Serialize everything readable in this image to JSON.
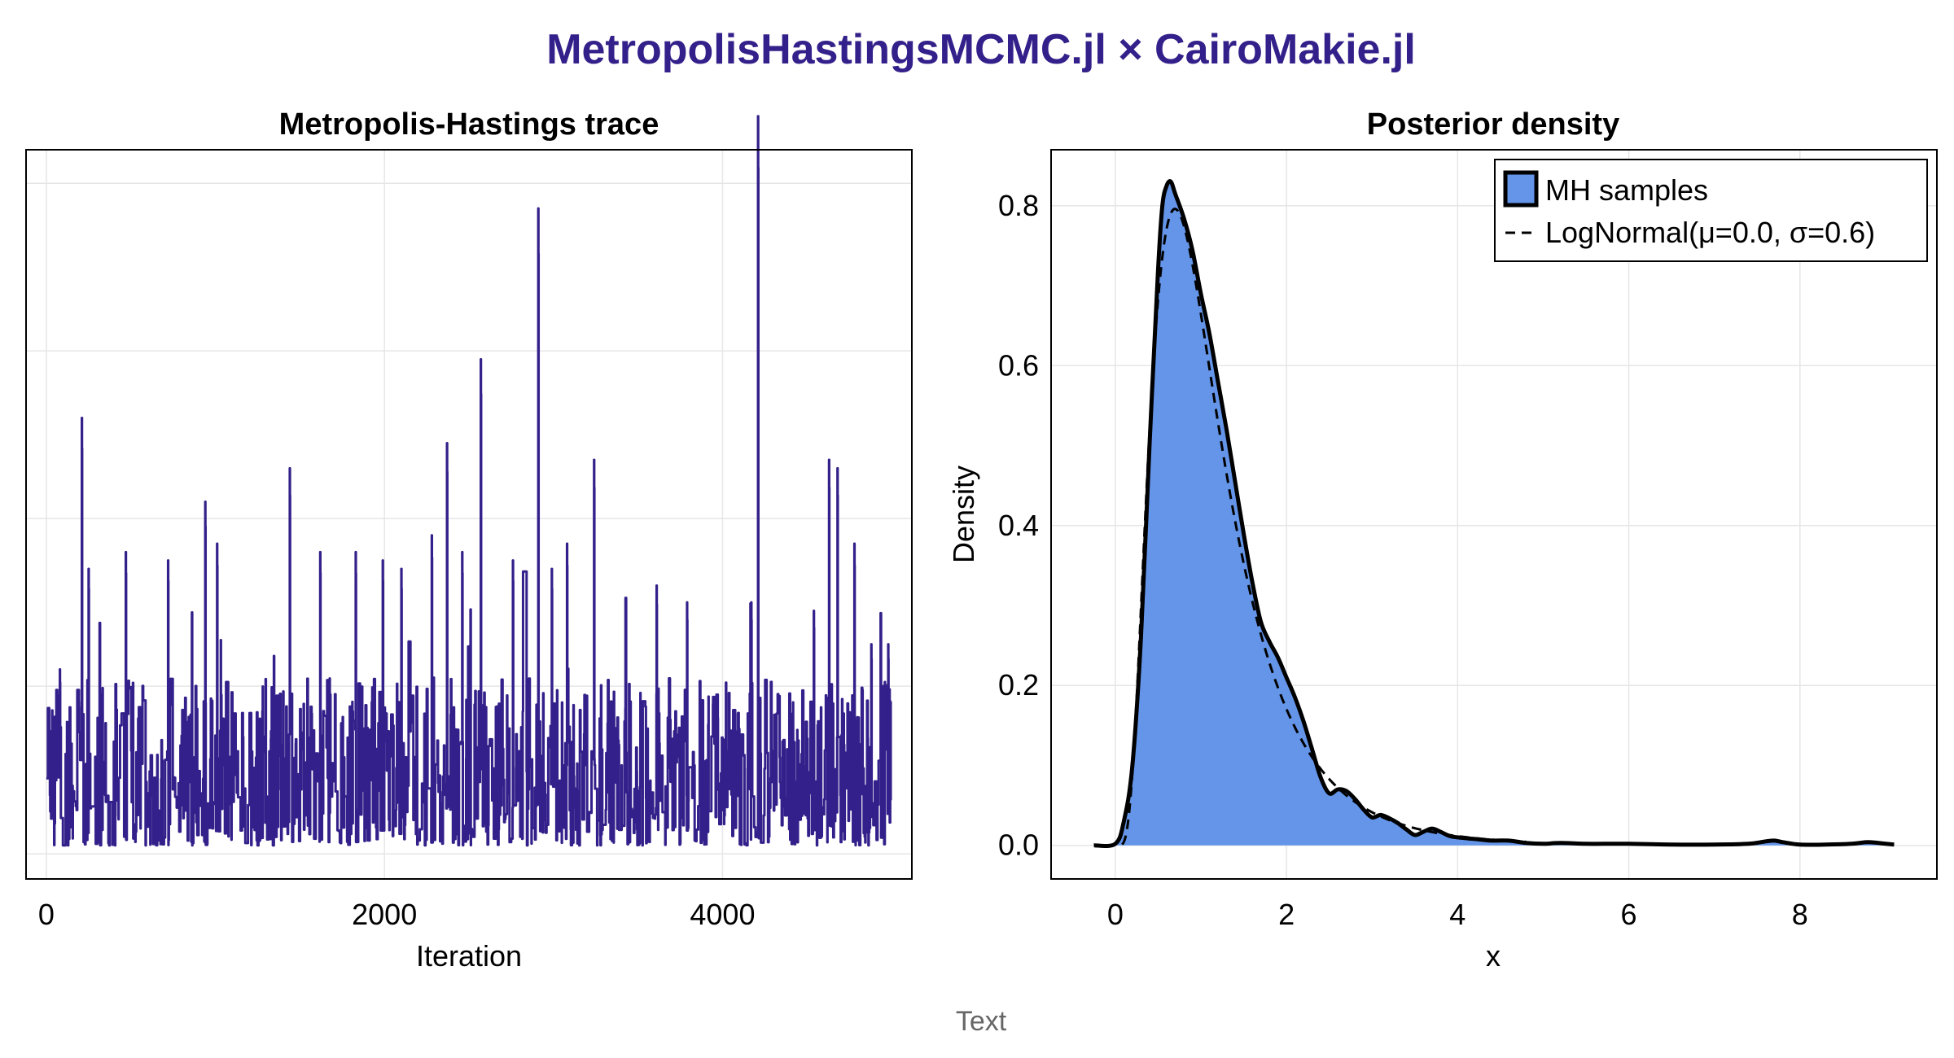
{
  "figure": {
    "title": "MetropolisHastingsMCMC.jl × CairoMakie.jl",
    "caption": "Text",
    "colors": {
      "title": "#34208a",
      "trace": "#34208a",
      "fill": "#6495e8",
      "line": "#000000",
      "grid": "#e6e6e6"
    }
  },
  "chart_data": [
    {
      "type": "line",
      "title": "Metropolis-Hastings trace",
      "xlabel": "Iteration",
      "ylabel": "",
      "xlim": [
        -120,
        5120
      ],
      "ylim": [
        -0.3,
        8.4
      ],
      "xticks": [
        0,
        2000,
        4000
      ],
      "xtick_labels": [
        "0",
        "2000",
        "4000"
      ],
      "yticks": [
        0,
        2,
        4,
        6,
        8
      ],
      "yticks_labeled": false,
      "grid": true,
      "n_iterations": 5000,
      "series": [
        {
          "color": "#34208a",
          "baseline_range": [
            0.1,
            2.1
          ],
          "spikes": [
            [
              80,
              2.2
            ],
            [
              210,
              5.2
            ],
            [
              250,
              3.4
            ],
            [
              470,
              3.6
            ],
            [
              720,
              3.5
            ],
            [
              940,
              4.2
            ],
            [
              1010,
              3.7
            ],
            [
              1440,
              4.6
            ],
            [
              1620,
              3.6
            ],
            [
              1830,
              3.6
            ],
            [
              1990,
              3.5
            ],
            [
              2100,
              3.4
            ],
            [
              2280,
              3.8
            ],
            [
              2370,
              4.9
            ],
            [
              2460,
              3.6
            ],
            [
              2570,
              5.9
            ],
            [
              2760,
              3.5
            ],
            [
              2910,
              7.7
            ],
            [
              2990,
              3.4
            ],
            [
              3080,
              3.7
            ],
            [
              3240,
              4.7
            ],
            [
              3610,
              3.2
            ],
            [
              3790,
              3.0
            ],
            [
              4170,
              3.0
            ],
            [
              4210,
              8.8
            ],
            [
              4540,
              2.9
            ],
            [
              4630,
              4.7
            ],
            [
              4680,
              4.6
            ],
            [
              4780,
              3.7
            ],
            [
              4880,
              2.5
            ],
            [
              4980,
              2.5
            ]
          ]
        }
      ]
    },
    {
      "type": "area",
      "title": "Posterior density",
      "xlabel": "x",
      "ylabel": "Density",
      "xlim": [
        -0.75,
        9.6
      ],
      "ylim": [
        -0.042,
        0.87
      ],
      "xticks": [
        0,
        2,
        4,
        6,
        8
      ],
      "xtick_labels": [
        "0",
        "2",
        "4",
        "6",
        "8"
      ],
      "yticks": [
        0.0,
        0.2,
        0.4,
        0.6,
        0.8
      ],
      "ytick_labels": [
        "0.0",
        "0.2",
        "0.4",
        "0.6",
        "0.8"
      ],
      "grid": true,
      "legend": {
        "position": "top-right",
        "entries": [
          "MH samples",
          "LogNormal(μ=0.0, σ=0.6)"
        ]
      },
      "series": [
        {
          "name": "MH samples",
          "style": "filled",
          "fill": "#6495e8",
          "x": [
            -0.25,
            0.0,
            0.1,
            0.2,
            0.3,
            0.4,
            0.5,
            0.55,
            0.6,
            0.65,
            0.7,
            0.8,
            0.9,
            1.0,
            1.1,
            1.2,
            1.3,
            1.4,
            1.5,
            1.6,
            1.7,
            1.8,
            1.9,
            2.0,
            2.1,
            2.2,
            2.3,
            2.4,
            2.5,
            2.6,
            2.7,
            2.8,
            2.9,
            3.0,
            3.1,
            3.2,
            3.3,
            3.4,
            3.5,
            3.6,
            3.7,
            3.8,
            3.9,
            4.0,
            4.2,
            4.4,
            4.6,
            4.8,
            5.0,
            5.2,
            5.5,
            5.8,
            6.0,
            6.5,
            7.0,
            7.4,
            7.6,
            7.7,
            7.8,
            8.0,
            8.3,
            8.6,
            8.8,
            9.0,
            9.1
          ],
          "y": [
            0.0,
            0.002,
            0.03,
            0.1,
            0.26,
            0.5,
            0.72,
            0.8,
            0.825,
            0.83,
            0.815,
            0.785,
            0.745,
            0.69,
            0.64,
            0.58,
            0.52,
            0.455,
            0.39,
            0.33,
            0.28,
            0.255,
            0.235,
            0.21,
            0.185,
            0.155,
            0.12,
            0.085,
            0.065,
            0.07,
            0.068,
            0.058,
            0.045,
            0.035,
            0.038,
            0.034,
            0.028,
            0.02,
            0.013,
            0.017,
            0.021,
            0.017,
            0.012,
            0.01,
            0.008,
            0.006,
            0.006,
            0.003,
            0.002,
            0.003,
            0.002,
            0.002,
            0.002,
            0.001,
            0.001,
            0.002,
            0.005,
            0.006,
            0.004,
            0.001,
            0.001,
            0.002,
            0.004,
            0.002,
            0.001
          ]
        },
        {
          "name": "LogNormal(μ=0.0, σ=0.6)",
          "style": "dashed",
          "mu": 0.0,
          "sigma": 0.6
        }
      ]
    }
  ]
}
